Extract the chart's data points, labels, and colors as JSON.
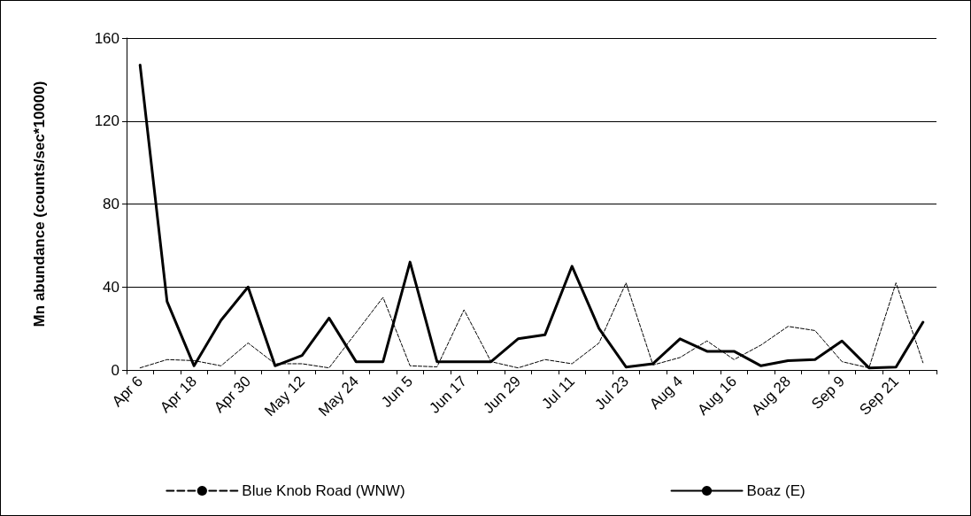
{
  "chart_data": {
    "type": "line",
    "ylabel": "Mn abundance (counts/sec*10000)",
    "categories": [
      "Apr 6",
      null,
      "Apr 18",
      null,
      "Apr 30",
      null,
      "May 12",
      null,
      "May 24",
      null,
      "Jun 5",
      null,
      "Jun 17",
      null,
      "Jun 29",
      null,
      "Jul 11",
      null,
      "Jul 23",
      null,
      "Aug 4",
      null,
      "Aug 16",
      null,
      "Aug 28",
      null,
      "Sep 9",
      null,
      "Sep 21",
      null
    ],
    "series": [
      {
        "name": "Blue Knob Road (WNW)",
        "color": "#000000",
        "line_style": "dashed",
        "values": [
          1,
          5,
          4.5,
          2,
          13,
          3,
          3,
          1,
          18,
          35,
          2,
          1.5,
          29,
          4,
          1,
          5,
          3,
          13,
          42,
          2.4,
          6,
          14,
          5,
          12,
          21,
          19,
          4,
          1,
          42,
          3.5
        ]
      },
      {
        "name": "Boaz (E)",
        "color": "#000000",
        "line_style": "solid",
        "values": [
          147,
          33,
          2,
          24,
          40,
          2,
          7,
          25,
          4,
          4,
          52,
          4,
          4,
          4,
          15,
          17,
          50,
          20,
          1.4,
          3,
          15,
          9,
          9,
          2,
          4.5,
          5,
          14,
          1,
          1.4,
          23
        ]
      }
    ],
    "ylim": [
      0,
      160
    ],
    "yticks": [
      0,
      40,
      80,
      120,
      160
    ],
    "grid": "y",
    "legend": "bottom",
    "marker": "none"
  }
}
